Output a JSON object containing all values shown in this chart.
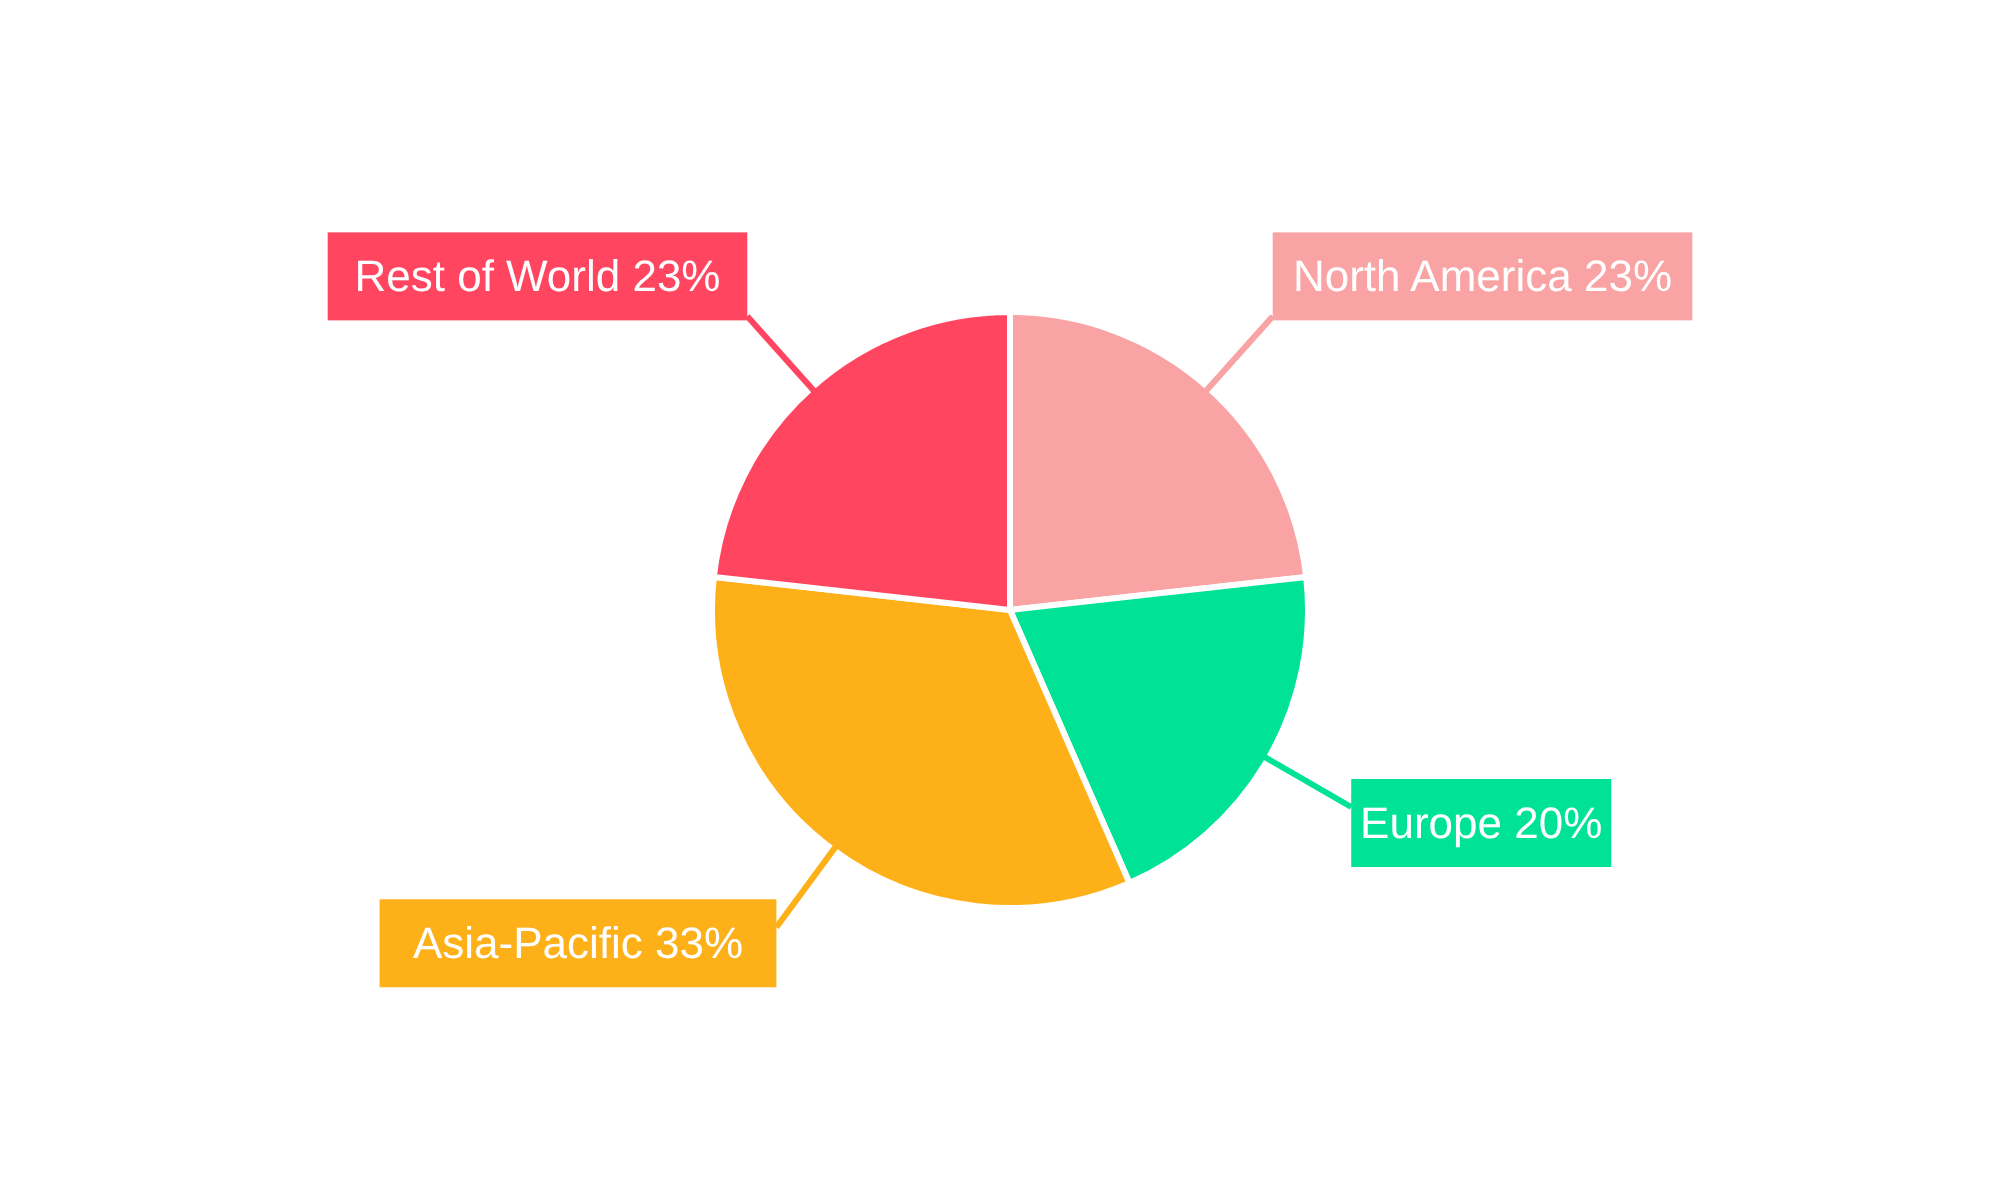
{
  "chart_data": {
    "type": "pie",
    "categories": [
      "North America",
      "Europe",
      "Asia-Pacific",
      "Rest of World"
    ],
    "values": [
      23,
      20,
      33,
      23
    ],
    "value_labels": [
      "23%",
      "20%",
      "33%",
      "23%"
    ],
    "colors": [
      "#f9a3a4",
      "#00e396",
      "#feb019",
      "#ff4560"
    ],
    "legend": false
  }
}
